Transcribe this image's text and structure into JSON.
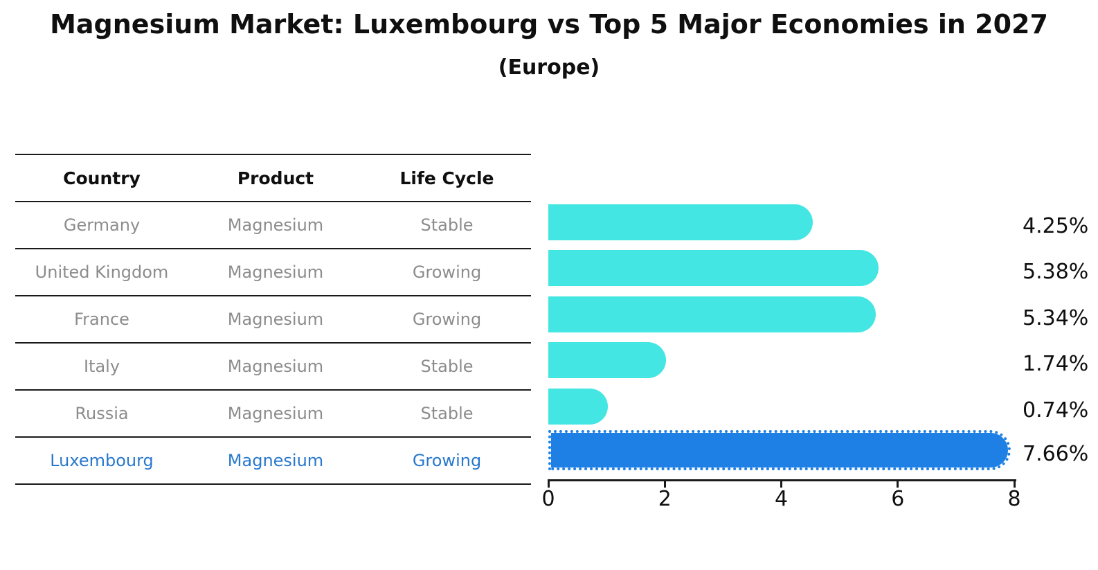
{
  "title": "Magnesium Market: Luxembourg vs Top 5 Major Economies in 2027",
  "subtitle": "(Europe)",
  "table": {
    "headers": [
      "Country",
      "Product",
      "Life Cycle"
    ],
    "rows": [
      {
        "country": "Germany",
        "product": "Magnesium",
        "life_cycle": "Stable",
        "highlight": false
      },
      {
        "country": "United Kingdom",
        "product": "Magnesium",
        "life_cycle": "Growing",
        "highlight": false
      },
      {
        "country": "France",
        "product": "Magnesium",
        "life_cycle": "Growing",
        "highlight": false
      },
      {
        "country": "Italy",
        "product": "Magnesium",
        "life_cycle": "Stable",
        "highlight": false
      },
      {
        "country": "Russia",
        "product": "Magnesium",
        "life_cycle": "Stable",
        "highlight": false
      },
      {
        "country": "Luxembourg",
        "product": "Magnesium",
        "life_cycle": "Growing",
        "highlight": true
      }
    ]
  },
  "chart_data": {
    "type": "bar",
    "orientation": "horizontal",
    "title": "Magnesium Market: Luxembourg vs Top 5 Major Economies in 2027",
    "subtitle": "(Europe)",
    "categories": [
      "Germany",
      "United Kingdom",
      "France",
      "Italy",
      "Russia",
      "Luxembourg"
    ],
    "values": [
      4.25,
      5.38,
      5.34,
      1.74,
      0.74,
      7.66
    ],
    "labels": [
      "4.25%",
      "5.38%",
      "5.34%",
      "1.74%",
      "0.74%",
      "7.66%"
    ],
    "highlight_index": 5,
    "x_ticks": [
      0,
      2,
      4,
      6,
      8
    ],
    "xlim": [
      0,
      8
    ],
    "grid": false,
    "legend": "none",
    "colors": {
      "bar_default": "#43e6e2",
      "bar_highlight": "#1e80e4",
      "highlight_text": "#2878ce",
      "table_text": "#8c8c8c",
      "header_text": "#0f0f0f",
      "axis_line": "#1a1a1a"
    }
  }
}
